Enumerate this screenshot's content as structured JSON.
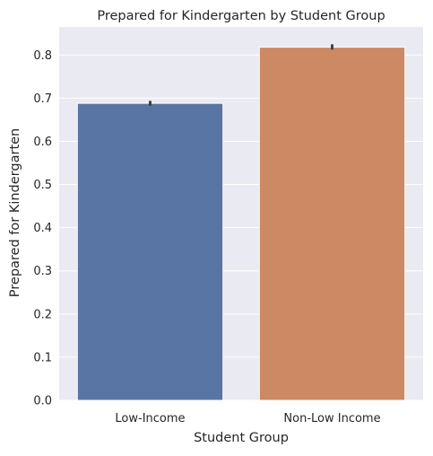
{
  "chart_data": {
    "type": "bar",
    "title": "Prepared for Kindergarten by Student Group",
    "xlabel": "Student Group",
    "ylabel": "Prepared for Kindergarten",
    "categories": [
      "Low-Income",
      "Non-Low Income"
    ],
    "values": [
      0.688,
      0.818
    ],
    "error_bars": [
      [
        0.685,
        0.691
      ],
      [
        0.815,
        0.822
      ]
    ],
    "ylim": [
      0,
      0.865
    ],
    "yticks": [
      0.0,
      0.1,
      0.2,
      0.3,
      0.4,
      0.5,
      0.6,
      0.7,
      0.8
    ],
    "ytick_labels": [
      "0.0",
      "0.1",
      "0.2",
      "0.3",
      "0.4",
      "0.5",
      "0.6",
      "0.7",
      "0.8"
    ],
    "grid": true,
    "colors": {
      "background": "#EAEAF2",
      "grid": "#FFFFFF",
      "bars": [
        "#5875A4",
        "#CC8963"
      ],
      "error_bar": "#424242"
    }
  }
}
